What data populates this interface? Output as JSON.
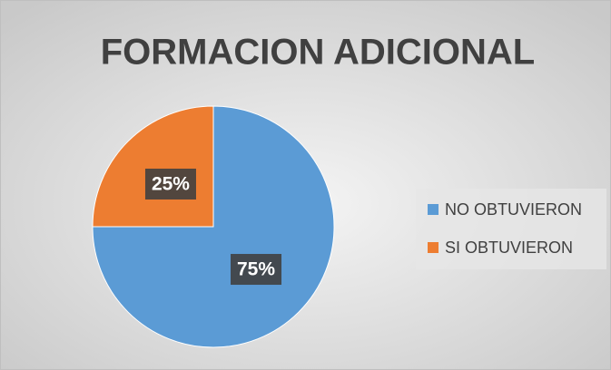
{
  "chart_data": {
    "type": "pie",
    "title": "FORMACION ADICIONAL",
    "categories": [
      "NO OBTUVIERON",
      "SI OBTUVIERON"
    ],
    "values": [
      75,
      25
    ],
    "value_labels": [
      "75%",
      "25%"
    ],
    "colors": [
      "#5b9bd5",
      "#ed7d31"
    ],
    "legend": "right"
  }
}
